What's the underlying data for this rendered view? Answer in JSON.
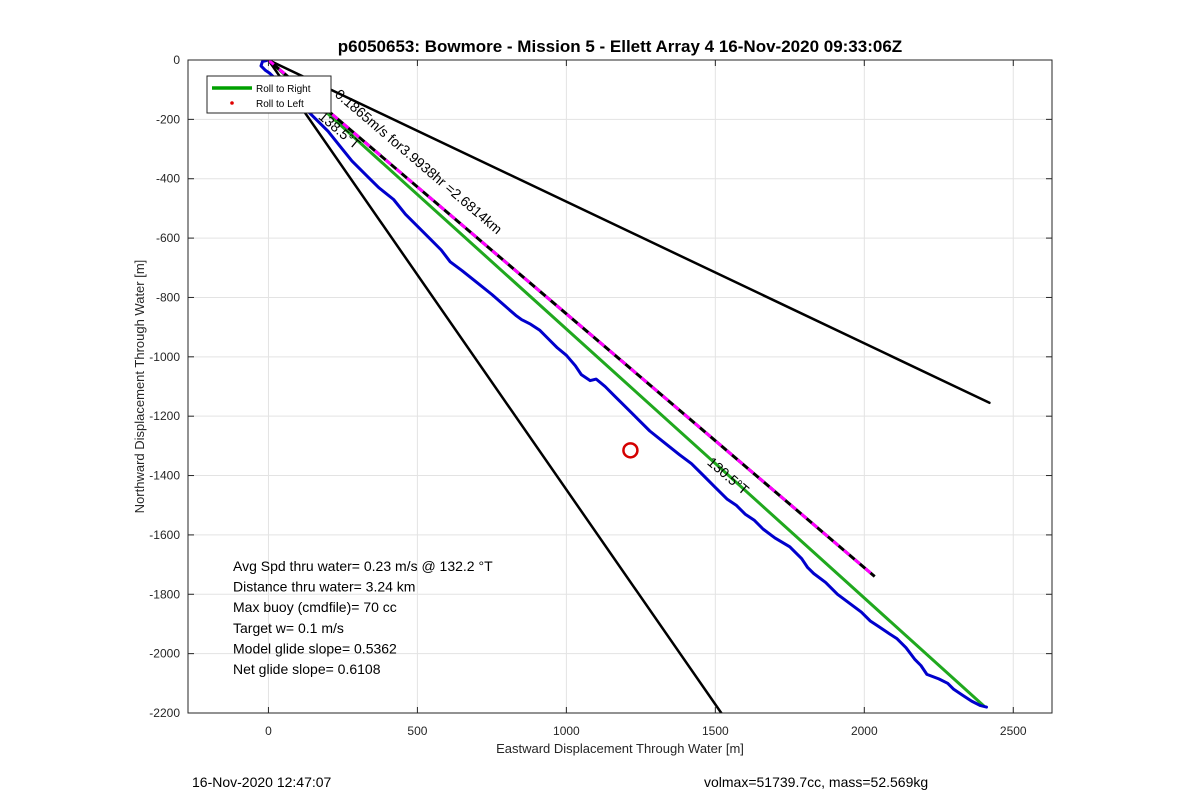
{
  "chart_data": {
    "type": "line",
    "title": "p6050653: Bowmore - Mission 5 - Ellett Array 4 16-Nov-2020 09:33:06Z",
    "xlabel": "Eastward Displacement Through Water [m]",
    "ylabel": "Northward Displacement Through Water [m]",
    "xlim": [
      -270,
      2630
    ],
    "ylim": [
      -2200,
      0
    ],
    "xticks": [
      0,
      500,
      1000,
      1500,
      2000,
      2500
    ],
    "yticks": [
      0,
      -200,
      -400,
      -600,
      -800,
      -1000,
      -1200,
      -1400,
      -1600,
      -1800,
      -2000,
      -2200
    ],
    "grid": true,
    "legend": {
      "location": "top-left",
      "entries": [
        {
          "label": "Roll to Right",
          "color": "#00a000",
          "style": "line"
        },
        {
          "label": "Roll to Left",
          "color": "#e00000",
          "style": "marker"
        }
      ]
    },
    "series": [
      {
        "name": "Roll to Right",
        "color": "#20a81e",
        "width": 3,
        "x": [
          0,
          2400
        ],
        "y": [
          0,
          -2175
        ]
      },
      {
        "color": "#0000cc",
        "width": 3,
        "x": [
          0,
          -20,
          -25,
          -10,
          5,
          20,
          60,
          110,
          150,
          200,
          240,
          280,
          330,
          370,
          420,
          460,
          500,
          540,
          580,
          610,
          650,
          700,
          750,
          790,
          830,
          850,
          860,
          880,
          910,
          940,
          970,
          1000,
          1030,
          1050,
          1080,
          1100,
          1130,
          1160,
          1200,
          1240,
          1280,
          1330,
          1380,
          1420,
          1460,
          1500,
          1540,
          1570,
          1600,
          1630,
          1660,
          1700,
          1750,
          1790,
          1810,
          1830,
          1870,
          1910,
          1950,
          1990,
          2020,
          2050,
          2080,
          2110,
          2140,
          2170,
          2190,
          2210,
          2250,
          2280,
          2300,
          2330,
          2360,
          2390,
          2410
        ],
        "y": [
          0,
          -5,
          -20,
          -35,
          -45,
          -60,
          -100,
          -150,
          -190,
          -240,
          -290,
          -340,
          -390,
          -430,
          -470,
          -520,
          -560,
          -600,
          -640,
          -680,
          -710,
          -750,
          -790,
          -825,
          -860,
          -875,
          -880,
          -890,
          -910,
          -940,
          -970,
          -995,
          -1030,
          -1060,
          -1080,
          -1075,
          -1100,
          -1130,
          -1170,
          -1210,
          -1250,
          -1290,
          -1330,
          -1360,
          -1400,
          -1440,
          -1480,
          -1500,
          -1530,
          -1550,
          -1580,
          -1610,
          -1640,
          -1680,
          -1710,
          -1730,
          -1760,
          -1800,
          -1830,
          -1860,
          -1890,
          -1910,
          -1930,
          -1950,
          -1980,
          -2020,
          -2040,
          -2070,
          -2085,
          -2100,
          -2120,
          -2140,
          -2160,
          -2175,
          -2180
        ]
      },
      {
        "color": "#000000",
        "width": 2.5,
        "x": [
          0,
          2420
        ],
        "y": [
          0,
          -1155
        ]
      },
      {
        "color": "#000000",
        "width": 2.5,
        "x": [
          0,
          1520
        ],
        "y": [
          0,
          -2200
        ]
      },
      {
        "color": "#000000",
        "width": 3,
        "dash": "black-magenta",
        "x": [
          0,
          2035
        ],
        "y": [
          0,
          -1740
        ]
      }
    ],
    "markers": [
      {
        "shape": "circle",
        "color": "#d40000",
        "x": 1215,
        "y": -1315
      }
    ],
    "annotations": [
      {
        "text": "0.1865m/s for3.9938hr =2.6814km",
        "x": 220,
        "y": -120,
        "angle": 40.5
      },
      {
        "text": "138.5°T",
        "x": 165,
        "y": -195,
        "angle": 40.5
      },
      {
        "text": "130.5°T",
        "x": 1470,
        "y": -1360,
        "angle": 40.5
      }
    ],
    "stats": [
      "Avg Spd thru water=  0.23 m/s @ 132.2 °T",
      "Distance thru water=  3.24 km",
      "Max buoy (cmdfile)= 70 cc",
      "Target w= 0.1 m/s",
      "Model glide slope= 0.5362",
      "Net glide slope= 0.6108"
    ]
  },
  "footer": {
    "left": "16-Nov-2020 12:47:07",
    "right": "volmax=51739.7cc, mass=52.569kg"
  }
}
